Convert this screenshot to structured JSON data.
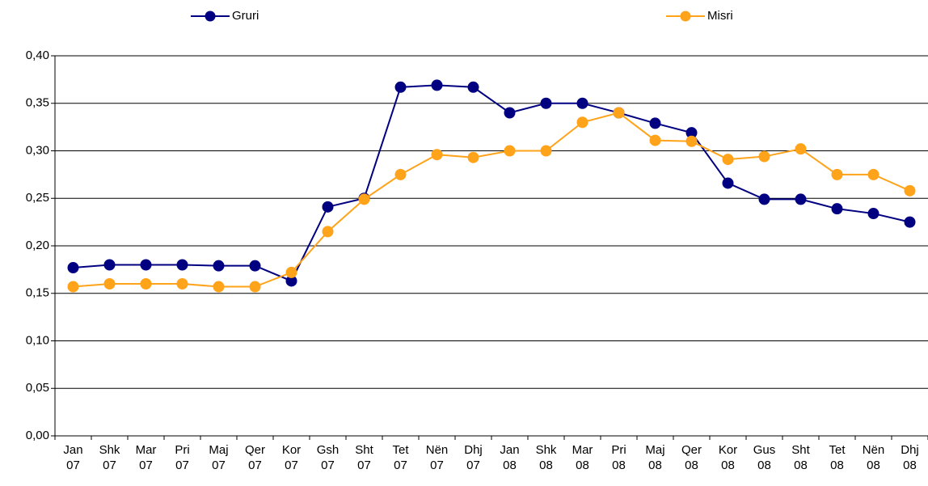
{
  "chart_data": {
    "type": "line",
    "categories": [
      "Jan 07",
      "Shk 07",
      "Mar 07",
      "Pri 07",
      "Maj 07",
      "Qer 07",
      "Kor 07",
      "Gsh 07",
      "Sht 07",
      "Tet 07",
      "Nën 07",
      "Dhj 07",
      "Jan 08",
      "Shk 08",
      "Mar 08",
      "Pri 08",
      "Maj 08",
      "Qer 08",
      "Kor 08",
      "Gus 08",
      "Sht 08",
      "Tet 08",
      "Nën 08",
      "Dhj 08"
    ],
    "series": [
      {
        "name": "Gruri",
        "color": "#000080",
        "values": [
          0.177,
          0.18,
          0.18,
          0.18,
          0.179,
          0.179,
          0.163,
          0.241,
          0.25,
          0.367,
          0.369,
          0.367,
          0.34,
          0.35,
          0.35,
          0.34,
          0.329,
          0.319,
          0.266,
          0.249,
          0.249,
          0.239,
          0.234,
          0.225
        ]
      },
      {
        "name": "Misri",
        "color": "#ffa31a",
        "values": [
          0.157,
          0.16,
          0.16,
          0.16,
          0.157,
          0.157,
          0.172,
          0.215,
          0.249,
          0.275,
          0.296,
          0.293,
          0.3,
          0.3,
          0.33,
          0.34,
          0.311,
          0.31,
          0.291,
          0.294,
          0.302,
          0.275,
          0.275,
          0.258
        ]
      }
    ],
    "ylim": [
      0,
      0.4
    ],
    "yticks": [
      {
        "value": 0,
        "label": "0,00"
      },
      {
        "value": 0.05,
        "label": "0,05"
      },
      {
        "value": 0.1,
        "label": "0,10"
      },
      {
        "value": 0.15,
        "label": "0,15"
      },
      {
        "value": 0.2,
        "label": "0,20"
      },
      {
        "value": 0.25,
        "label": "0,25"
      },
      {
        "value": 0.3,
        "label": "0,30"
      },
      {
        "value": 0.35,
        "label": "0,35"
      },
      {
        "value": 0.4,
        "label": "0,40"
      }
    ],
    "grid": true,
    "legend": "top"
  }
}
